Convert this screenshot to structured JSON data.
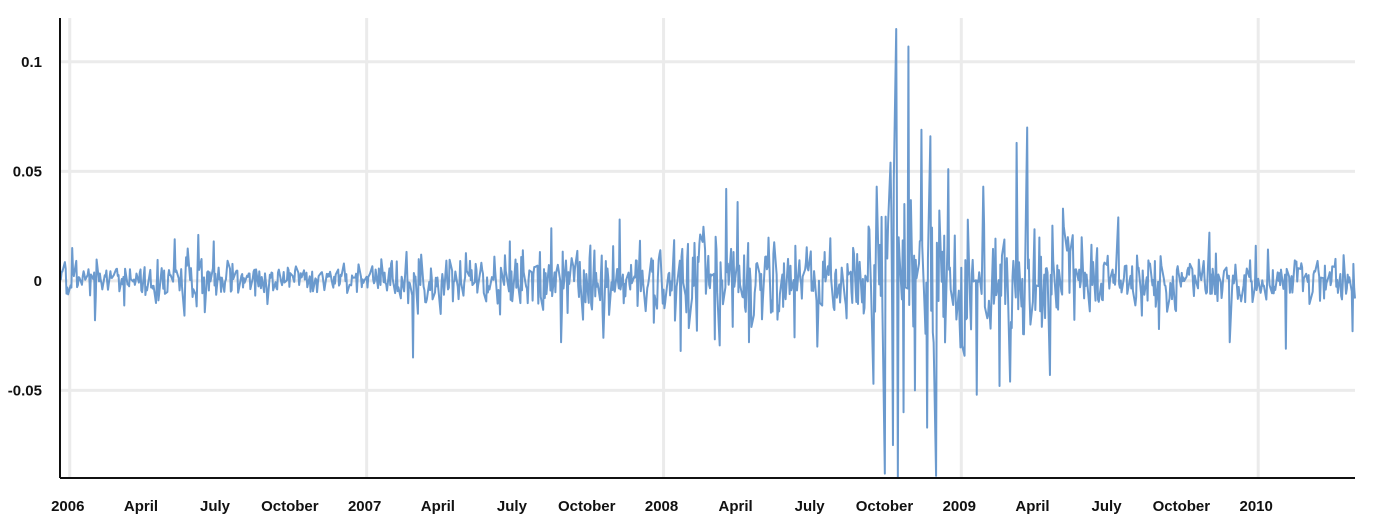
{
  "chart_data": {
    "type": "line",
    "title": "",
    "xlabel": "",
    "ylabel": "",
    "x_start": "2005-12-20",
    "x_end": "2010-04-30",
    "x_ticks": [
      {
        "date": "2006-01-01",
        "label": "2006",
        "year": true
      },
      {
        "date": "2006-04-01",
        "label": "April",
        "year": false
      },
      {
        "date": "2006-07-01",
        "label": "July",
        "year": false
      },
      {
        "date": "2006-10-01",
        "label": "October",
        "year": false
      },
      {
        "date": "2007-01-01",
        "label": "2007",
        "year": true
      },
      {
        "date": "2007-04-01",
        "label": "April",
        "year": false
      },
      {
        "date": "2007-07-01",
        "label": "July",
        "year": false
      },
      {
        "date": "2007-10-01",
        "label": "October",
        "year": false
      },
      {
        "date": "2008-01-01",
        "label": "2008",
        "year": true
      },
      {
        "date": "2008-04-01",
        "label": "April",
        "year": false
      },
      {
        "date": "2008-07-01",
        "label": "July",
        "year": false
      },
      {
        "date": "2008-10-01",
        "label": "October",
        "year": false
      },
      {
        "date": "2009-01-01",
        "label": "2009",
        "year": true
      },
      {
        "date": "2009-04-01",
        "label": "April",
        "year": false
      },
      {
        "date": "2009-07-01",
        "label": "July",
        "year": false
      },
      {
        "date": "2009-10-01",
        "label": "October",
        "year": false
      },
      {
        "date": "2010-01-01",
        "label": "2010",
        "year": true
      }
    ],
    "y_ticks": [
      {
        "value": 0.1,
        "label": "0.1"
      },
      {
        "value": 0.05,
        "label": "0.05"
      },
      {
        "value": 0,
        "label": "0"
      },
      {
        "value": -0.05,
        "label": "-0.05"
      }
    ],
    "ylim": [
      -0.09,
      0.12
    ],
    "grid": true,
    "legend": "none",
    "colors": {
      "line": "#5b8fc9",
      "grid": "#ebebeb",
      "axis": "#111111"
    },
    "series": [
      {
        "envelope": [
          {
            "date": "2006-01-01",
            "amp": 0.009
          },
          {
            "date": "2006-03-01",
            "amp": 0.009
          },
          {
            "date": "2006-05-15",
            "amp": 0.015
          },
          {
            "date": "2006-07-15",
            "amp": 0.011
          },
          {
            "date": "2006-10-01",
            "amp": 0.008
          },
          {
            "date": "2007-01-01",
            "amp": 0.008
          },
          {
            "date": "2007-03-01",
            "amp": 0.014
          },
          {
            "date": "2007-06-01",
            "amp": 0.012
          },
          {
            "date": "2007-08-01",
            "amp": 0.021
          },
          {
            "date": "2007-11-01",
            "amp": 0.02
          },
          {
            "date": "2008-01-15",
            "amp": 0.026
          },
          {
            "date": "2008-04-01",
            "amp": 0.03
          },
          {
            "date": "2008-07-01",
            "amp": 0.022
          },
          {
            "date": "2008-09-01",
            "amp": 0.03
          },
          {
            "date": "2008-10-20",
            "amp": 0.065
          },
          {
            "date": "2008-12-01",
            "amp": 0.05
          },
          {
            "date": "2009-01-15",
            "amp": 0.03
          },
          {
            "date": "2009-03-20",
            "amp": 0.04
          },
          {
            "date": "2009-06-01",
            "amp": 0.02
          },
          {
            "date": "2009-10-01",
            "amp": 0.013
          },
          {
            "date": "2010-04-30",
            "amp": 0.012
          }
        ],
        "spikes": [
          {
            "date": "2006-01-04",
            "value": 0.015
          },
          {
            "date": "2006-02-01",
            "value": -0.018
          },
          {
            "date": "2006-05-10",
            "value": 0.019
          },
          {
            "date": "2006-06-08",
            "value": 0.021
          },
          {
            "date": "2006-06-27",
            "value": 0.018
          },
          {
            "date": "2007-02-27",
            "value": -0.035
          },
          {
            "date": "2007-06-26",
            "value": 0.018
          },
          {
            "date": "2007-08-16",
            "value": 0.024
          },
          {
            "date": "2007-08-28",
            "value": -0.028
          },
          {
            "date": "2007-10-19",
            "value": -0.026
          },
          {
            "date": "2007-11-08",
            "value": 0.028
          },
          {
            "date": "2008-01-22",
            "value": -0.032
          },
          {
            "date": "2008-03-18",
            "value": 0.042
          },
          {
            "date": "2008-04-01",
            "value": 0.036
          },
          {
            "date": "2008-04-15",
            "value": -0.028
          },
          {
            "date": "2008-07-08",
            "value": -0.03
          },
          {
            "date": "2008-09-15",
            "value": -0.047
          },
          {
            "date": "2008-09-19",
            "value": 0.043
          },
          {
            "date": "2008-09-29",
            "value": -0.088
          },
          {
            "date": "2008-10-06",
            "value": 0.054
          },
          {
            "date": "2008-10-09",
            "value": -0.075
          },
          {
            "date": "2008-10-13",
            "value": 0.115
          },
          {
            "date": "2008-10-15",
            "value": -0.09
          },
          {
            "date": "2008-10-22",
            "value": -0.06
          },
          {
            "date": "2008-10-28",
            "value": 0.107
          },
          {
            "date": "2008-11-05",
            "value": -0.05
          },
          {
            "date": "2008-11-13",
            "value": 0.069
          },
          {
            "date": "2008-11-20",
            "value": -0.067
          },
          {
            "date": "2008-11-24",
            "value": 0.066
          },
          {
            "date": "2008-12-01",
            "value": -0.089
          },
          {
            "date": "2008-12-16",
            "value": 0.051
          },
          {
            "date": "2009-01-20",
            "value": -0.052
          },
          {
            "date": "2009-01-28",
            "value": 0.043
          },
          {
            "date": "2009-02-17",
            "value": -0.048
          },
          {
            "date": "2009-03-02",
            "value": -0.046
          },
          {
            "date": "2009-03-10",
            "value": 0.063
          },
          {
            "date": "2009-03-23",
            "value": 0.07
          },
          {
            "date": "2009-04-20",
            "value": -0.043
          },
          {
            "date": "2009-05-06",
            "value": 0.033
          },
          {
            "date": "2009-07-13",
            "value": 0.029
          },
          {
            "date": "2009-09-01",
            "value": -0.022
          },
          {
            "date": "2009-11-02",
            "value": 0.022
          },
          {
            "date": "2009-11-27",
            "value": -0.028
          },
          {
            "date": "2010-02-04",
            "value": -0.031
          },
          {
            "date": "2010-04-27",
            "value": -0.023
          }
        ]
      }
    ]
  }
}
